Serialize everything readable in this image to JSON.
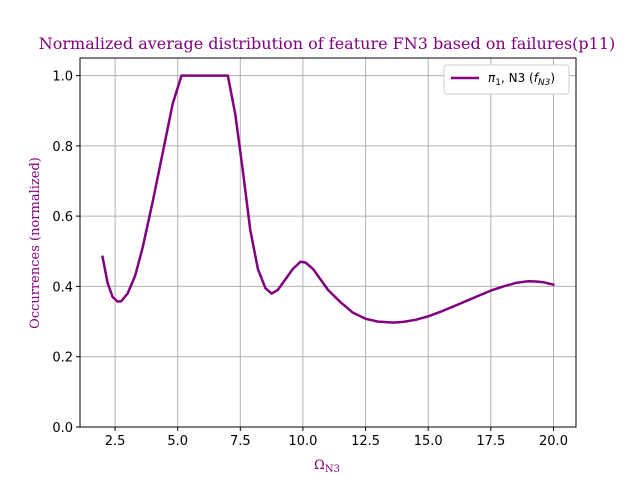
{
  "chart_data": {
    "type": "line",
    "title": "Normalized average distribution of feature FN3 based on failures(p11)",
    "xlabel": "Ω",
    "xlabel_sub": "N3",
    "ylabel": "Occurrences (normalized)",
    "xlim": [
      1.1,
      20.9
    ],
    "ylim": [
      0.0,
      1.05
    ],
    "x_ticks": [
      2.5,
      5.0,
      7.5,
      10.0,
      12.5,
      15.0,
      17.5,
      20.0
    ],
    "x_tick_labels": [
      "2.5",
      "5.0",
      "7.5",
      "10.0",
      "12.5",
      "15.0",
      "17.5",
      "20.0"
    ],
    "y_ticks": [
      0.0,
      0.2,
      0.4,
      0.6,
      0.8,
      1.0
    ],
    "y_tick_labels": [
      "0.0",
      "0.2",
      "0.4",
      "0.6",
      "0.8",
      "1.0"
    ],
    "grid": true,
    "legend_position": "top-right",
    "series": [
      {
        "name": "π1, N3 (fN3)",
        "legend_parts": {
          "a": "π",
          "a_sub": "1",
          "b": ", N3 (",
          "c": "f",
          "c_sub": "N3",
          "d": ")"
        },
        "color": "#800080",
        "x": [
          2.0,
          2.2,
          2.4,
          2.6,
          2.75,
          3.0,
          3.3,
          3.6,
          4.0,
          4.4,
          4.8,
          5.15,
          5.5,
          6.0,
          6.5,
          7.0,
          7.3,
          7.6,
          7.9,
          8.2,
          8.5,
          8.75,
          9.0,
          9.3,
          9.6,
          9.9,
          10.1,
          10.4,
          10.7,
          11.0,
          11.5,
          12.0,
          12.5,
          13.0,
          13.6,
          14.0,
          14.5,
          15.0,
          15.5,
          16.0,
          16.5,
          17.0,
          17.5,
          18.0,
          18.5,
          19.0,
          19.3,
          19.6,
          20.0
        ],
        "y": [
          0.485,
          0.41,
          0.37,
          0.357,
          0.358,
          0.38,
          0.43,
          0.51,
          0.64,
          0.78,
          0.92,
          1.0,
          1.0,
          1.0,
          1.0,
          1.0,
          0.89,
          0.73,
          0.56,
          0.45,
          0.395,
          0.38,
          0.39,
          0.42,
          0.45,
          0.47,
          0.468,
          0.45,
          0.42,
          0.39,
          0.355,
          0.325,
          0.308,
          0.3,
          0.297,
          0.299,
          0.305,
          0.315,
          0.328,
          0.343,
          0.358,
          0.373,
          0.388,
          0.4,
          0.41,
          0.415,
          0.414,
          0.412,
          0.405
        ]
      }
    ]
  }
}
